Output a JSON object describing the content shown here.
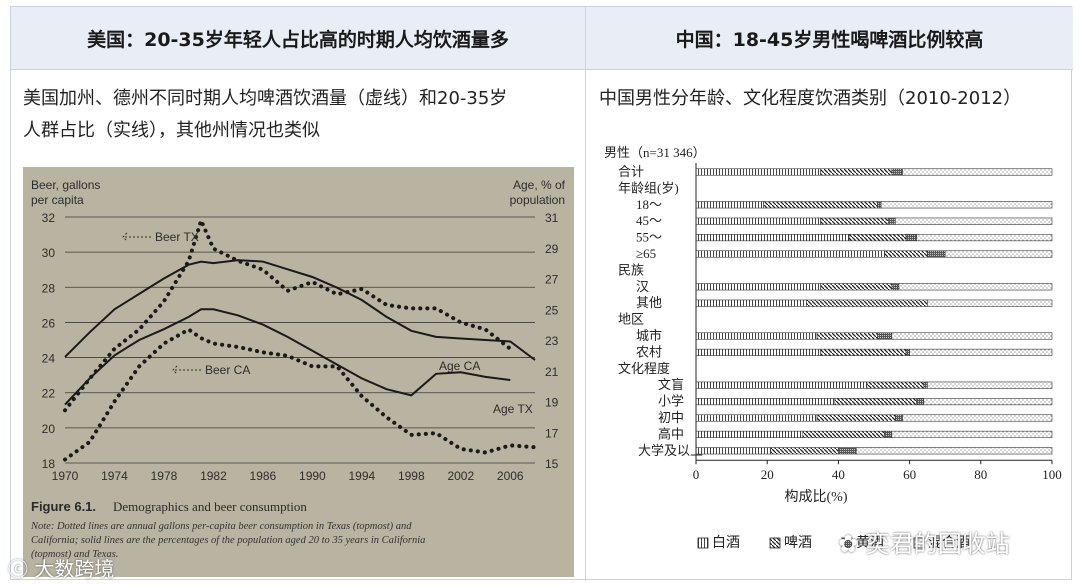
{
  "left": {
    "header": "美国：20-35岁年轻人占比高的时期人均饮酒量多",
    "desc_line1": "美国加州、德州不同时期人均啤酒饮酒量（虚线）和20-35岁",
    "desc_line2": "人群占比（实线），其他州情况也类似",
    "photo": {
      "left_axis_title_1": "Beer, gallons",
      "left_axis_title_2": "per capita",
      "right_axis_title_1": "Age, % of",
      "right_axis_title_2": "population",
      "left_ticks": [
        "32",
        "30",
        "28",
        "26",
        "24",
        "22",
        "20",
        "18"
      ],
      "right_ticks": [
        "31",
        "29",
        "27",
        "25",
        "23",
        "21",
        "19",
        "17",
        "15"
      ],
      "x_ticks": [
        "1970",
        "1974",
        "1978",
        "1982",
        "1986",
        "1990",
        "1994",
        "1998",
        "2002",
        "2006"
      ],
      "label_beer_tx": "Beer TX",
      "label_beer_ca": "Beer CA",
      "label_age_ca": "Age CA",
      "label_age_tx": "Age TX",
      "caption_title": "Figure 6.1.",
      "caption_subtitle": "Demographics and beer consumption",
      "note_1": "Note: Dotted lines are annual gallons per-capita beer consumption in Texas (topmost) and",
      "note_2": "California; solid lines are the percentages of the population aged 20 to 35 years in California",
      "note_3": "(topmost) and Texas."
    }
  },
  "right": {
    "header": "中国：18-45岁男性喝啤酒比例较高",
    "desc": "中国男性分年龄、文化程度饮酒类别（2010-2012）",
    "sample_label": "男性（n=31 346）",
    "x_axis_label": "构成比(%)",
    "legend": [
      "白酒",
      "啤酒",
      "黄酒",
      "混合酒"
    ]
  },
  "watermarks": {
    "left": "大数跨境",
    "right": "奕君的回收站"
  },
  "chart_data": [
    {
      "type": "line",
      "title": "Demographics and beer consumption",
      "xlabel": "",
      "ylabel": "Beer, gallons per capita",
      "y2label": "Age, % of population",
      "x": [
        1970,
        1972,
        1974,
        1976,
        1978,
        1980,
        1981,
        1982,
        1984,
        1986,
        1988,
        1990,
        1992,
        1994,
        1996,
        1998,
        2000,
        2002,
        2004,
        2006,
        2008
      ],
      "xlim": [
        1970,
        2008
      ],
      "ylim": [
        18,
        32
      ],
      "y2lim": [
        15,
        31
      ],
      "series": [
        {
          "name": "Beer TX",
          "axis": "left",
          "style": "dotted",
          "values": [
            21.0,
            22.8,
            24.5,
            25.6,
            27.2,
            29.5,
            31.8,
            30.2,
            29.5,
            29.0,
            27.8,
            28.3,
            27.6,
            27.9,
            27.0,
            26.8,
            26.8,
            26.0,
            25.6,
            24.5,
            null
          ]
        },
        {
          "name": "Beer CA",
          "axis": "left",
          "style": "dotted",
          "values": [
            18.2,
            19.2,
            21.5,
            23.5,
            24.8,
            25.6,
            25.1,
            24.8,
            24.6,
            24.3,
            24.1,
            23.5,
            23.5,
            21.8,
            20.6,
            19.6,
            19.7,
            18.8,
            18.6,
            19.0,
            18.9
          ]
        },
        {
          "name": "Age CA",
          "axis": "right",
          "style": "solid",
          "values": [
            21.9,
            23.5,
            25.0,
            26.0,
            27.0,
            27.9,
            28.1,
            28.0,
            28.2,
            28.1,
            27.6,
            27.1,
            26.4,
            25.6,
            24.5,
            23.6,
            23.2,
            23.1,
            23.0,
            22.9,
            21.7
          ]
        },
        {
          "name": "Age TX",
          "axis": "right",
          "style": "solid",
          "values": [
            18.8,
            20.5,
            22.0,
            23.0,
            23.7,
            24.5,
            25.0,
            25.0,
            24.6,
            24.0,
            23.2,
            22.3,
            21.4,
            20.5,
            19.8,
            19.4,
            20.8,
            20.9,
            20.6,
            20.4,
            null
          ]
        }
      ],
      "annotations": [
        "Beer TX",
        "Beer CA",
        "Age CA",
        "Age TX"
      ]
    },
    {
      "type": "bar",
      "stacked": true,
      "orientation": "horizontal",
      "title": "男性（n=31 346）",
      "xlabel": "构成比(%)",
      "xlim": [
        0,
        100
      ],
      "categories": [
        "合计",
        "年龄组(岁)",
        "18～",
        "45～",
        "55～",
        "≥65",
        "民族",
        "汉",
        "其他",
        "地区",
        "城市",
        "农村",
        "文化程度",
        "文盲",
        "小学",
        "初中",
        "高中",
        "大学及以上"
      ],
      "series": [
        {
          "name": "白酒",
          "values": [
            35,
            null,
            19,
            35,
            43,
            53,
            null,
            35,
            31,
            null,
            34,
            35,
            null,
            48,
            39,
            34,
            30,
            21
          ]
        },
        {
          "name": "啤酒",
          "values": [
            20,
            null,
            32,
            19,
            16,
            12,
            null,
            20,
            34,
            null,
            17,
            24,
            null,
            16,
            23,
            22,
            23,
            19
          ]
        },
        {
          "name": "黄酒",
          "values": [
            3,
            null,
            1,
            2,
            3,
            5,
            null,
            2,
            0,
            null,
            4,
            1,
            null,
            1,
            2,
            2,
            2,
            5
          ]
        },
        {
          "name": "混合酒",
          "values": [
            42,
            null,
            48,
            44,
            38,
            30,
            null,
            43,
            35,
            null,
            45,
            40,
            null,
            35,
            36,
            42,
            45,
            55
          ]
        }
      ]
    }
  ]
}
